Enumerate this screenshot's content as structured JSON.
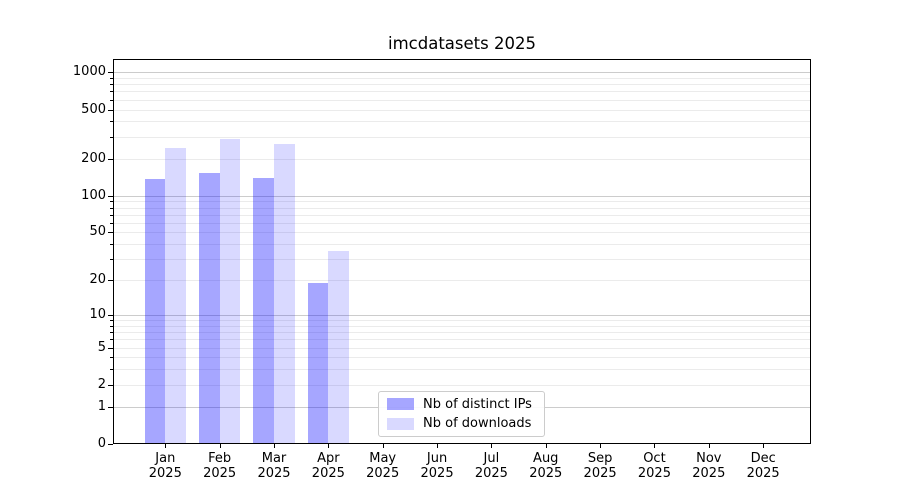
{
  "chart_data": {
    "type": "bar",
    "title": "imcdatasets 2025",
    "categories": [
      "Jan",
      "Feb",
      "Mar",
      "Apr",
      "May",
      "Jun",
      "Jul",
      "Aug",
      "Sep",
      "Oct",
      "Nov",
      "Dec"
    ],
    "category_year_line": "2025",
    "series": [
      {
        "name": "Nb of distinct IPs",
        "base_color": "#0000ff",
        "alpha": 0.35,
        "rendered_color": "#a8a8f7",
        "values": [
          137,
          153,
          140,
          19,
          null,
          null,
          null,
          null,
          null,
          null,
          null,
          null
        ]
      },
      {
        "name": "Nb of downloads",
        "base_color": "#0000ff",
        "alpha": 0.15,
        "rendered_color": "#d9d9f9",
        "values": [
          246,
          289,
          261,
          35,
          null,
          null,
          null,
          null,
          null,
          null,
          null,
          null
        ]
      }
    ],
    "yscale": "log1p",
    "ylim": [
      0,
      1280
    ],
    "yticks": [
      0,
      1,
      2,
      5,
      10,
      20,
      50,
      100,
      200,
      500,
      1000
    ],
    "grid": {
      "major_values": [
        1,
        10,
        100,
        1000
      ],
      "minor_values": [
        2,
        3,
        4,
        5,
        6,
        7,
        8,
        9,
        20,
        30,
        40,
        50,
        60,
        70,
        80,
        90,
        200,
        300,
        400,
        500,
        600,
        700,
        800,
        900
      ],
      "major_color": "#cccccc",
      "minor_color": "#ebebeb"
    },
    "legend": {
      "entries": [
        "Nb of distinct IPs",
        "Nb of downloads"
      ],
      "position": "lower center"
    },
    "xlabel": "",
    "ylabel": ""
  }
}
